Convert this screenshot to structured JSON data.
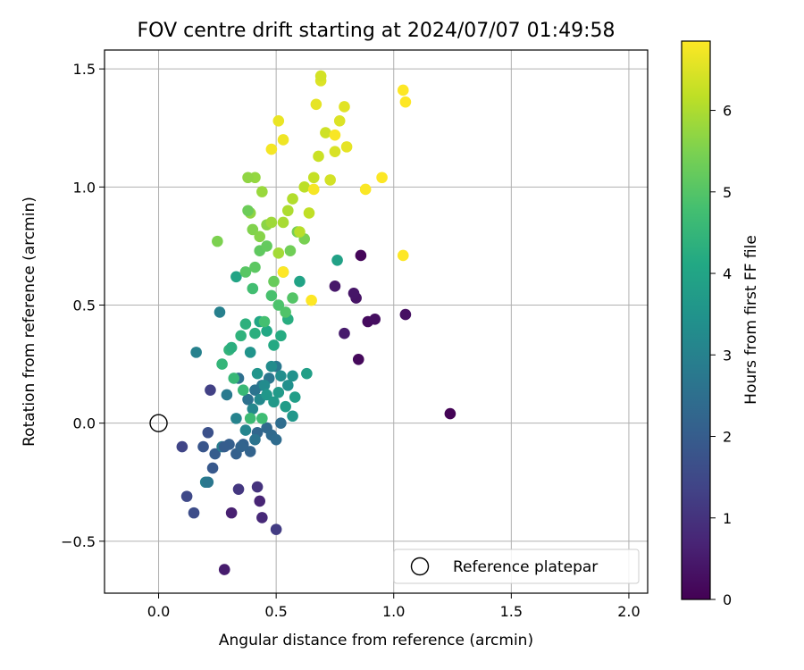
{
  "chart_data": {
    "type": "scatter",
    "title": "FOV centre drift starting at 2024/07/07 01:49:58",
    "xlabel": "Angular distance from reference (arcmin)",
    "ylabel": "Rotation from reference (arcmin)",
    "xlim": [
      -0.23,
      2.08
    ],
    "ylim": [
      -0.72,
      1.58
    ],
    "xticks": [
      0.0,
      0.5,
      1.0,
      1.5,
      2.0
    ],
    "xtick_labels": [
      "0.0",
      "0.5",
      "1.0",
      "1.5",
      "2.0"
    ],
    "yticks": [
      -0.5,
      0.0,
      0.5,
      1.0,
      1.5
    ],
    "ytick_labels": [
      "−0.5",
      "0.0",
      "0.5",
      "1.0",
      "1.5"
    ],
    "grid": true,
    "legend": {
      "placement": "lower-right",
      "entries": [
        "Reference platepar"
      ]
    },
    "reference_point": {
      "x": 0.0,
      "y": 0.0,
      "label": "Reference platepar"
    },
    "colorbar": {
      "label": "Hours from first FF file",
      "range": [
        0,
        6.85
      ],
      "ticks": [
        0,
        1,
        2,
        3,
        4,
        5,
        6
      ],
      "tick_labels": [
        "0",
        "1",
        "2",
        "3",
        "4",
        "5",
        "6"
      ],
      "colormap": "viridis"
    },
    "series": [
      {
        "points": [
          [
            1.24,
            0.04,
            0.05
          ],
          [
            0.86,
            0.71,
            0.1
          ],
          [
            0.85,
            0.27,
            0.15
          ],
          [
            0.89,
            0.43,
            0.2
          ],
          [
            0.92,
            0.44,
            0.25
          ],
          [
            1.05,
            0.46,
            0.3
          ],
          [
            0.84,
            0.53,
            0.35
          ],
          [
            0.83,
            0.55,
            0.4
          ],
          [
            0.75,
            0.58,
            0.45
          ],
          [
            0.79,
            0.38,
            0.5
          ],
          [
            0.28,
            -0.62,
            0.55
          ],
          [
            0.31,
            -0.38,
            0.6
          ],
          [
            0.43,
            -0.33,
            0.7
          ],
          [
            0.44,
            -0.4,
            0.8
          ],
          [
            0.42,
            -0.27,
            1.0
          ],
          [
            0.34,
            -0.28,
            1.1
          ],
          [
            0.5,
            -0.45,
            1.2
          ],
          [
            0.22,
            0.14,
            1.3
          ],
          [
            0.1,
            -0.1,
            1.4
          ],
          [
            0.12,
            -0.31,
            1.5
          ],
          [
            0.15,
            -0.38,
            1.6
          ],
          [
            0.21,
            -0.04,
            1.7
          ],
          [
            0.19,
            -0.1,
            1.8
          ],
          [
            0.23,
            -0.19,
            1.9
          ],
          [
            0.24,
            -0.13,
            2.0
          ],
          [
            0.3,
            -0.09,
            2.05
          ],
          [
            0.33,
            -0.13,
            2.1
          ],
          [
            0.36,
            -0.09,
            2.15
          ],
          [
            0.39,
            -0.12,
            2.2
          ],
          [
            0.42,
            -0.04,
            2.25
          ],
          [
            0.46,
            -0.02,
            2.3
          ],
          [
            0.48,
            -0.05,
            2.35
          ],
          [
            0.5,
            -0.07,
            2.4
          ],
          [
            0.52,
            0.0,
            2.45
          ],
          [
            0.34,
            0.19,
            2.5
          ],
          [
            0.38,
            0.1,
            2.55
          ],
          [
            0.41,
            0.14,
            2.6
          ],
          [
            0.44,
            0.16,
            2.65
          ],
          [
            0.47,
            0.19,
            2.7
          ],
          [
            0.5,
            0.24,
            2.75
          ],
          [
            0.29,
            0.12,
            2.8
          ],
          [
            0.27,
            -0.1,
            2.85
          ],
          [
            0.2,
            -0.25,
            2.9
          ],
          [
            0.26,
            0.47,
            2.95
          ],
          [
            0.16,
            0.3,
            3.0
          ],
          [
            0.33,
            0.02,
            3.05
          ],
          [
            0.37,
            -0.03,
            3.1
          ],
          [
            0.4,
            0.06,
            3.15
          ],
          [
            0.43,
            0.1,
            3.2
          ],
          [
            0.45,
            0.16,
            3.25
          ],
          [
            0.48,
            0.24,
            3.3
          ],
          [
            0.52,
            0.2,
            3.35
          ],
          [
            0.55,
            0.16,
            3.4
          ],
          [
            0.57,
            0.2,
            3.45
          ],
          [
            0.39,
            0.3,
            3.5
          ],
          [
            0.42,
            0.21,
            3.55
          ],
          [
            0.46,
            0.12,
            3.6
          ],
          [
            0.49,
            0.09,
            3.65
          ],
          [
            0.51,
            0.13,
            3.7
          ],
          [
            0.54,
            0.07,
            3.75
          ],
          [
            0.58,
            0.11,
            3.8
          ],
          [
            0.63,
            0.21,
            3.85
          ],
          [
            0.76,
            0.69,
            3.9
          ],
          [
            0.6,
            0.6,
            3.95
          ],
          [
            0.33,
            0.62,
            4.0
          ],
          [
            0.43,
            0.43,
            4.05
          ],
          [
            0.46,
            0.39,
            4.1
          ],
          [
            0.49,
            0.33,
            4.15
          ],
          [
            0.52,
            0.37,
            4.2
          ],
          [
            0.55,
            0.44,
            4.25
          ],
          [
            0.41,
            0.38,
            4.3
          ],
          [
            0.37,
            0.42,
            4.35
          ],
          [
            0.35,
            0.37,
            4.4
          ],
          [
            0.3,
            0.31,
            4.45
          ],
          [
            0.27,
            0.25,
            4.5
          ],
          [
            0.32,
            0.19,
            4.55
          ],
          [
            0.36,
            0.14,
            4.6
          ],
          [
            0.39,
            0.02,
            4.65
          ],
          [
            0.44,
            0.02,
            4.7
          ],
          [
            0.4,
            0.57,
            4.75
          ],
          [
            0.45,
            0.43,
            4.8
          ],
          [
            0.48,
            0.54,
            4.85
          ],
          [
            0.51,
            0.5,
            4.9
          ],
          [
            0.54,
            0.47,
            4.95
          ],
          [
            0.57,
            0.53,
            5.0
          ],
          [
            0.37,
            0.64,
            5.05
          ],
          [
            0.41,
            0.66,
            5.1
          ],
          [
            0.43,
            0.73,
            5.15
          ],
          [
            0.46,
            0.75,
            5.2
          ],
          [
            0.49,
            0.6,
            5.25
          ],
          [
            0.53,
            0.64,
            5.3
          ],
          [
            0.56,
            0.73,
            5.35
          ],
          [
            0.59,
            0.81,
            5.4
          ],
          [
            0.62,
            0.78,
            5.45
          ],
          [
            0.25,
            0.77,
            5.5
          ],
          [
            0.4,
            0.82,
            5.55
          ],
          [
            0.43,
            0.79,
            5.6
          ],
          [
            0.46,
            0.84,
            5.65
          ],
          [
            0.39,
            0.89,
            5.7
          ],
          [
            0.41,
            1.04,
            5.75
          ],
          [
            0.44,
            0.98,
            5.8
          ],
          [
            0.48,
            0.85,
            5.85
          ],
          [
            0.51,
            0.72,
            5.9
          ],
          [
            0.53,
            0.85,
            5.95
          ],
          [
            0.55,
            0.9,
            6.0
          ],
          [
            0.57,
            0.95,
            6.05
          ],
          [
            0.6,
            0.81,
            6.1
          ],
          [
            0.62,
            1.0,
            6.15
          ],
          [
            0.64,
            0.89,
            6.2
          ],
          [
            0.66,
            1.04,
            6.25
          ],
          [
            0.68,
            1.13,
            6.3
          ],
          [
            0.71,
            1.23,
            6.35
          ],
          [
            0.73,
            1.03,
            6.4
          ],
          [
            0.75,
            1.15,
            6.45
          ],
          [
            0.77,
            1.28,
            6.5
          ],
          [
            0.79,
            1.34,
            6.55
          ],
          [
            0.8,
            1.17,
            6.6
          ],
          [
            0.51,
            1.28,
            6.65
          ],
          [
            0.53,
            1.2,
            6.7
          ],
          [
            0.48,
            1.16,
            6.75
          ],
          [
            0.66,
            0.99,
            6.78
          ],
          [
            0.75,
            1.22,
            6.8
          ],
          [
            0.88,
            0.99,
            6.82
          ],
          [
            0.95,
            1.04,
            6.84
          ],
          [
            1.04,
            1.41,
            6.85
          ],
          [
            1.05,
            1.36,
            6.85
          ],
          [
            1.04,
            0.71,
            6.85
          ],
          [
            0.65,
            0.52,
            6.85
          ],
          [
            0.53,
            0.64,
            6.85
          ],
          [
            0.67,
            1.35,
            6.6
          ],
          [
            0.69,
            1.45,
            6.5
          ],
          [
            0.69,
            1.47,
            6.4
          ],
          [
            0.38,
            1.04,
            5.7
          ],
          [
            0.38,
            0.9,
            5.3
          ],
          [
            0.31,
            0.32,
            4.3
          ],
          [
            0.57,
            0.03,
            3.6
          ],
          [
            0.41,
            -0.07,
            2.6
          ],
          [
            0.35,
            -0.1,
            2.2
          ],
          [
            0.28,
            -0.1,
            2.0
          ],
          [
            0.21,
            -0.25,
            2.7
          ]
        ]
      }
    ]
  }
}
